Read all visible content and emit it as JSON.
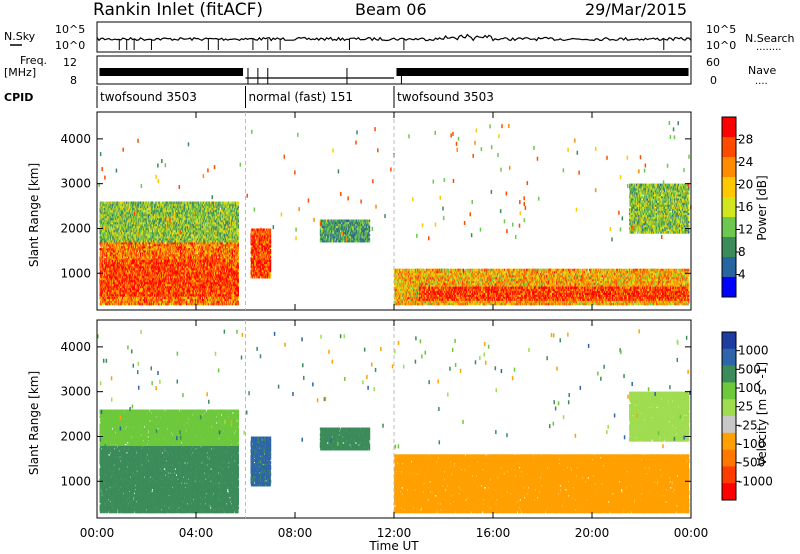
{
  "header": {
    "station": "Rankin Inlet (fitACF)",
    "beam": "Beam 06",
    "date": "29/Mar/2015"
  },
  "left_labels": {
    "nsky": "N.Sky",
    "freq": "Freq.",
    "freq_unit": "[MHz]",
    "cpid": "CPID"
  },
  "right_labels": {
    "nsearch": "N.Search",
    "nsearch_dots": "........",
    "nave": "Nave",
    "nave_dots": "...."
  },
  "noise_panel": {
    "left_ticks": [
      "10^5",
      "10^0"
    ],
    "right_ticks": [
      "10^5",
      "10^0"
    ]
  },
  "freq_panel": {
    "left_ticks": [
      "12",
      "8"
    ],
    "right_ticks": [
      "60",
      "0"
    ]
  },
  "cpid_segments": [
    {
      "label": "twofsound 3503",
      "start_hour": 0,
      "end_hour": 6
    },
    {
      "label": "normal (fast) 151",
      "start_hour": 6,
      "end_hour": 12
    },
    {
      "label": "twofsound 3503",
      "start_hour": 12,
      "end_hour": 24
    }
  ],
  "x_axis": {
    "label": "Time UT",
    "ticks": [
      "00:00",
      "04:00",
      "08:00",
      "12:00",
      "16:00",
      "20:00",
      "00:00"
    ]
  },
  "power_colorbar": {
    "title": "Power [dB]",
    "ticks": [
      "28",
      "24",
      "20",
      "16",
      "12",
      "8",
      "4"
    ],
    "colors": [
      "#ff0000",
      "#ff4b00",
      "#ff8c00",
      "#ffc800",
      "#d2e61e",
      "#6ec850",
      "#3c8c5a",
      "#2864a0",
      "#0000ff"
    ]
  },
  "velocity_colorbar": {
    "title": "Velocity [m s^-1]",
    "ticks": [
      "1000",
      "500",
      "100",
      "25",
      "-25",
      "-100",
      "-500",
      "-1000"
    ],
    "colors": [
      "#1e3ca0",
      "#2e64a8",
      "#3c8c5a",
      "#6ec83c",
      "#a0dc50",
      "#c8c8c8",
      "#ffa000",
      "#ff7800",
      "#ff3c00",
      "#ff0000"
    ]
  },
  "chart_data": [
    {
      "type": "heatmap",
      "title": "",
      "xlabel": "Time UT",
      "ylabel": "Slant Range [km]",
      "xlim": [
        0,
        24
      ],
      "ylim": [
        180,
        4600
      ],
      "yticks": [
        1000,
        2000,
        3000,
        4000
      ],
      "quantity": "Power [dB]",
      "regions": [
        {
          "t0": 0.1,
          "t1": 5.7,
          "r0": 300,
          "r1": 1700,
          "value": 24
        },
        {
          "t0": 0.1,
          "t1": 5.7,
          "r0": 500,
          "r1": 1300,
          "value": 28
        },
        {
          "t0": 0.1,
          "t1": 5.7,
          "r0": 1700,
          "r1": 2600,
          "value": 12
        },
        {
          "t0": 6.2,
          "t1": 7.0,
          "r0": 900,
          "r1": 2000,
          "value": 28
        },
        {
          "t0": 9.0,
          "t1": 11.0,
          "r0": 1700,
          "r1": 2200,
          "value": 8
        },
        {
          "t0": 12.0,
          "t1": 23.9,
          "r0": 300,
          "r1": 1100,
          "value": 20
        },
        {
          "t0": 13.0,
          "t1": 23.9,
          "r0": 400,
          "r1": 700,
          "value": 28
        },
        {
          "t0": 21.5,
          "t1": 23.9,
          "r0": 1900,
          "r1": 3000,
          "value": 12
        }
      ]
    },
    {
      "type": "heatmap",
      "title": "",
      "xlabel": "Time UT",
      "ylabel": "Slant Range [km]",
      "xlim": [
        0,
        24
      ],
      "ylim": [
        180,
        4600
      ],
      "yticks": [
        1000,
        2000,
        3000,
        4000
      ],
      "quantity": "Velocity [m s^-1]",
      "regions": [
        {
          "t0": 0.1,
          "t1": 5.7,
          "r0": 300,
          "r1": 1800,
          "value": 200
        },
        {
          "t0": 0.1,
          "t1": 5.7,
          "r0": 1800,
          "r1": 2600,
          "value": 50
        },
        {
          "t0": 6.2,
          "t1": 7.0,
          "r0": 900,
          "r1": 2000,
          "value": 600
        },
        {
          "t0": 9.0,
          "t1": 11.0,
          "r0": 1700,
          "r1": 2200,
          "value": 150
        },
        {
          "t0": 12.0,
          "t1": 23.9,
          "r0": 300,
          "r1": 1600,
          "value": -300
        },
        {
          "t0": 21.5,
          "t1": 23.9,
          "r0": 1900,
          "r1": 3000,
          "value": -10
        }
      ]
    }
  ]
}
